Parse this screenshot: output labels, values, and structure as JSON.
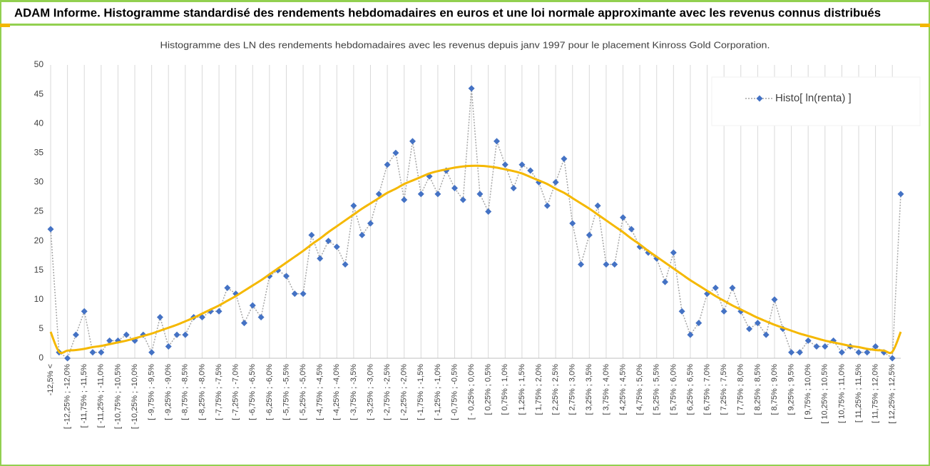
{
  "header": {
    "title": "ADAM Informe. Histogramme standardisé des rendements hebdomadaires en euros et une loi normale approximante avec les revenus connus distribués"
  },
  "chart_data": {
    "type": "line",
    "title": "Histogramme des LN des rendements hebdomadaires avec les revenus depuis janv 1997 pour le placement Kinross Gold Corporation.",
    "categories": [
      "-12,5% <",
      null,
      "[ -12,25% ; -12,0%",
      null,
      "[ -11,75% ; -11,5%",
      null,
      "[ -11,25% ; -11,0%",
      null,
      "[ -10,75% ; -10,5%",
      null,
      "[ -10,25% ; -10,0%",
      null,
      "[ -9,75% ; -9,5%",
      null,
      "[ -9,25% ; -9,0%",
      null,
      "[ -8,75% ; -8,5%",
      null,
      "[ -8,25% ; -8,0%",
      null,
      "[ -7,75% ; -7,5%",
      null,
      "[ -7,25% ; -7,0%",
      null,
      "[ -6,75% ; -6,5%",
      null,
      "[ -6,25% ; -6,0%",
      null,
      "[ -5,75% ; -5,5%",
      null,
      "[ -5,25% ; -5,0%",
      null,
      "[ -4,75% ; -4,5%",
      null,
      "[ -4,25% ; -4,0%",
      null,
      "[ -3,75% ; -3,5%",
      null,
      "[ -3,25% ; -3,0%",
      null,
      "[ -2,75% ; -2,5%",
      null,
      "[ -2,25% ; -2,0%",
      null,
      "[ -1,75% ; -1,5%",
      null,
      "[ -1,25% ; -1,0%",
      null,
      "[ -0,75% ; -0,5%",
      null,
      "[ - 0,25% ; 0,0%",
      null,
      "[ 0,25% ; 0,5%",
      null,
      "[ 0,75% ; 1,0%",
      null,
      "[ 1,25% ; 1,5%",
      null,
      "[ 1,75% ; 2,0%",
      null,
      "[ 2,25% ; 2,5%",
      null,
      "[ 2,75% ; 3,0%",
      null,
      "[ 3,25% ; 3,5%",
      null,
      "[ 3,75% ; 4,0%",
      null,
      "[ 4,25% ; 4,5%",
      null,
      "[ 4,75% ; 5,0%",
      null,
      "[ 5,25% ; 5,5%",
      null,
      "[ 5,75% ; 6,0%",
      null,
      "[ 6,25% ; 6,5%",
      null,
      "[ 6,75% ; 7,0%",
      null,
      "[ 7,25% ; 7,5%",
      null,
      "[ 7,75% ; 8,0%",
      null,
      "[ 8,25% ; 8,5%",
      null,
      "[ 8,75% ; 9,0%",
      null,
      "[ 9,25% ; 9,5%",
      null,
      "[ 9,75% ; 10,0%",
      null,
      "[ 10,25% ; 10,5%",
      null,
      "[ 10,75% ; 11,0%",
      null,
      "[ 11,25% ; 11,5%",
      null,
      "[ 11,75% ; 12,0%",
      null,
      "[ 12,25% ; 12,5%",
      null
    ],
    "series": [
      {
        "name": "Histo[ ln(renta) ]",
        "color": "#4472c4",
        "line_color": "#a6a6a6",
        "line_style": "dotted",
        "marker": "diamond",
        "values": [
          22,
          1,
          0,
          4,
          8,
          1,
          1,
          3,
          3,
          4,
          3,
          4,
          1,
          7,
          2,
          4,
          4,
          7,
          7,
          8,
          8,
          12,
          11,
          6,
          9,
          7,
          14,
          15,
          14,
          11,
          11,
          21,
          17,
          20,
          19,
          16,
          26,
          21,
          23,
          28,
          33,
          35,
          27,
          37,
          28,
          31,
          28,
          32,
          29,
          27,
          46,
          28,
          25,
          37,
          33,
          29,
          33,
          32,
          30,
          26,
          30,
          34,
          23,
          16,
          21,
          26,
          16,
          16,
          24,
          22,
          19,
          18,
          17,
          13,
          18,
          8,
          4,
          6,
          11,
          12,
          8,
          12,
          8,
          5,
          6,
          4,
          10,
          5,
          1,
          1,
          3,
          2,
          2,
          3,
          1,
          2,
          1,
          1,
          2,
          1,
          0,
          28
        ]
      },
      {
        "color": "#f5b800",
        "smooth": true,
        "values": [
          4.5,
          1.1,
          1.3,
          1.4,
          1.6,
          1.9,
          2.1,
          2.4,
          2.7,
          3.0,
          3.4,
          3.8,
          4.2,
          4.7,
          5.2,
          5.7,
          6.3,
          6.9,
          7.6,
          8.3,
          9.0,
          9.8,
          10.6,
          11.5,
          12.4,
          13.3,
          14.3,
          15.3,
          16.3,
          17.3,
          18.3,
          19.4,
          20.4,
          21.5,
          22.5,
          23.5,
          24.5,
          25.5,
          26.4,
          27.3,
          28.2,
          28.9,
          29.7,
          30.3,
          30.9,
          31.5,
          31.9,
          32.2,
          32.5,
          32.7,
          32.8,
          32.8,
          32.7,
          32.5,
          32.2,
          31.9,
          31.5,
          30.9,
          30.3,
          29.7,
          28.9,
          28.2,
          27.3,
          26.4,
          25.5,
          24.5,
          23.5,
          22.5,
          21.5,
          20.4,
          19.4,
          18.3,
          17.3,
          16.3,
          15.3,
          14.3,
          13.3,
          12.4,
          11.5,
          10.6,
          9.8,
          9.0,
          8.3,
          7.6,
          6.9,
          6.3,
          5.7,
          5.2,
          4.7,
          4.2,
          3.8,
          3.4,
          3.0,
          2.7,
          2.4,
          2.1,
          1.9,
          1.6,
          1.4,
          1.3,
          1.1,
          4.5
        ]
      }
    ],
    "ylim": [
      0,
      50
    ],
    "yticks": [
      0,
      5,
      10,
      15,
      20,
      25,
      30,
      35,
      40,
      45,
      50
    ],
    "grid": "x",
    "legend": "upper right"
  }
}
